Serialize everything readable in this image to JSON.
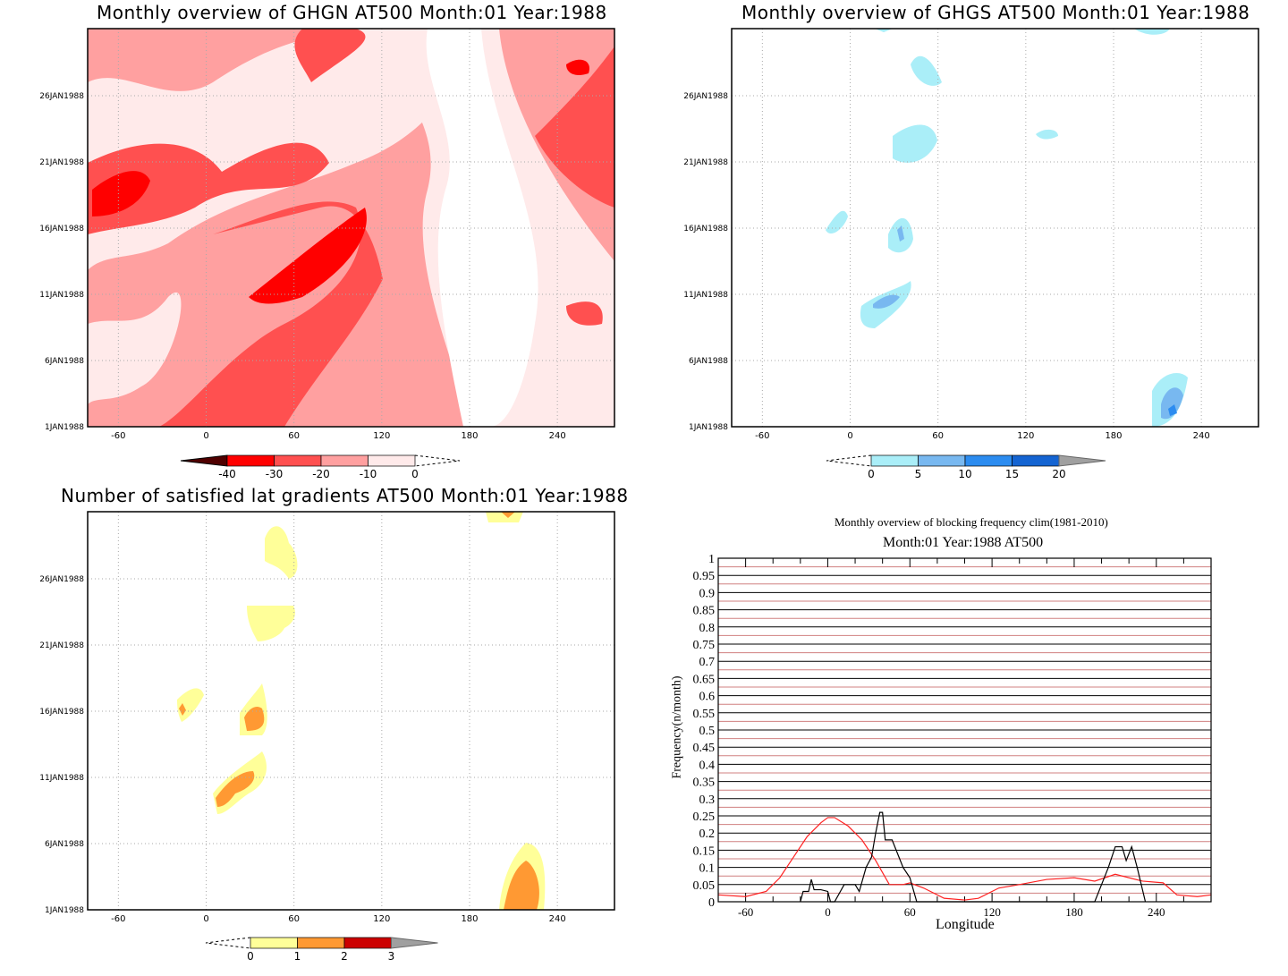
{
  "panels": {
    "ghgn": {
      "title": "Monthly overview of GHGN AT500 Month:01 Year:1988",
      "colorbar": {
        "labels": [
          "-40",
          "-30",
          "-20",
          "-10",
          "0"
        ],
        "colors": [
          "#ff0000",
          "#ff5050",
          "#ffa0a0",
          "#ffeaea"
        ],
        "under": "#500000"
      }
    },
    "ghgs": {
      "title": "Monthly overview of GHGS AT500 Month:01 Year:1988",
      "colorbar": {
        "labels": [
          "0",
          "5",
          "10",
          "15",
          "20"
        ],
        "colors": [
          "#aaeef8",
          "#78b8f0",
          "#2c8cf0",
          "#1464d2"
        ],
        "over": "#a0a0a0"
      }
    },
    "lat": {
      "title": "Number of satisfied lat gradients AT500 Month:01 Year:1988",
      "colorbar": {
        "labels": [
          "0",
          "1",
          "2",
          "3"
        ],
        "colors": [
          "#ffff99",
          "#ff9933",
          "#cc0000"
        ],
        "over": "#a0a0a0"
      }
    }
  },
  "map_axes": {
    "x_ticks": [
      "-60",
      "0",
      "60",
      "120",
      "180",
      "240"
    ],
    "y_ticks": [
      "1JAN1988",
      "6JAN1988",
      "11JAN1988",
      "16JAN1988",
      "21JAN1988",
      "26JAN1988"
    ]
  },
  "chart_data": {
    "type": "line",
    "title": "Monthly overview of blocking frequency clim(1981-2010)",
    "subtitle": "Month:01 Year:1988  AT500",
    "xlabel": "Longitude",
    "ylabel": "Frequency(n/month)",
    "xlim": [
      -80,
      280
    ],
    "ylim": [
      0,
      1
    ],
    "x_ticks": [
      "-60",
      "0",
      "60",
      "120",
      "180",
      "240"
    ],
    "y_ticks": [
      "0",
      "0.05",
      "0.1",
      "0.15",
      "0.2",
      "0.25",
      "0.3",
      "0.35",
      "0.4",
      "0.45",
      "0.5",
      "0.55",
      "0.6",
      "0.65",
      "0.7",
      "0.75",
      "0.8",
      "0.85",
      "0.9",
      "0.95",
      "1"
    ],
    "series": [
      {
        "name": "clim",
        "color": "#ff2020",
        "x": [
          -80,
          -60,
          -45,
          -35,
          -25,
          -15,
          -5,
          0,
          5,
          15,
          25,
          35,
          45,
          55,
          60,
          70,
          85,
          100,
          110,
          125,
          140,
          160,
          180,
          195,
          210,
          230,
          245,
          255,
          270,
          280
        ],
        "y": [
          0.02,
          0.015,
          0.03,
          0.07,
          0.13,
          0.19,
          0.23,
          0.245,
          0.245,
          0.22,
          0.18,
          0.12,
          0.05,
          0.05,
          0.055,
          0.04,
          0.01,
          0.005,
          0.01,
          0.04,
          0.05,
          0.065,
          0.07,
          0.06,
          0.08,
          0.06,
          0.055,
          0.02,
          0.015,
          0.02
        ]
      },
      {
        "name": "1988",
        "color": "#000000",
        "x": [
          -20,
          -18,
          -14,
          -12,
          -10,
          -5,
          0,
          2,
          5,
          12,
          20,
          23,
          28,
          32,
          35,
          38,
          40,
          42,
          47,
          55,
          60,
          65,
          195,
          200,
          205,
          210,
          215,
          218,
          222,
          226,
          232
        ],
        "y": [
          0,
          0.03,
          0.03,
          0.065,
          0.035,
          0.035,
          0.03,
          0,
          0,
          0.05,
          0.05,
          0.03,
          0.1,
          0.13,
          0.2,
          0.26,
          0.26,
          0.18,
          0.18,
          0.1,
          0.07,
          0,
          0,
          0.05,
          0.1,
          0.16,
          0.16,
          0.12,
          0.16,
          0.1,
          0
        ]
      }
    ]
  }
}
